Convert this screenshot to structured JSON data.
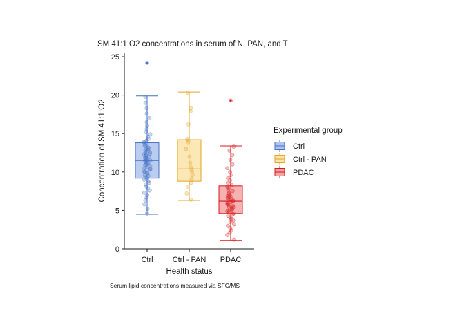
{
  "chart_data": {
    "type": "boxplot",
    "title": "SM 41:1;O2 concentrations in serum of N, PAN, and T",
    "xlabel": "Health status",
    "ylabel": "Concentration of SM 41:1;O2",
    "caption": "Serum lipid concentrations measured via SFC/MS",
    "ylim": [
      0,
      25
    ],
    "yticks": [
      0,
      5,
      10,
      15,
      20,
      25
    ],
    "categories": [
      "Ctrl",
      "Ctrl - PAN",
      "PDAC"
    ],
    "legend": {
      "title": "Experimental group",
      "position": "right",
      "entries": [
        "Ctrl",
        "Ctrl - PAN",
        "PDAC"
      ]
    },
    "grid": false,
    "series": [
      {
        "category": "Ctrl",
        "color": "#4472C4",
        "fill": "#AFC3EE",
        "whisker_low": 4.5,
        "q1": 9.2,
        "median": 11.5,
        "q3": 13.8,
        "whisker_high": 19.9,
        "outliers": [
          24.2
        ],
        "points": [
          4.6,
          5.2,
          5.8,
          6.3,
          6.7,
          7.0,
          7.3,
          7.6,
          7.9,
          8.1,
          8.4,
          8.6,
          8.8,
          9.0,
          9.2,
          9.3,
          9.5,
          9.6,
          9.8,
          9.9,
          10.0,
          10.1,
          10.3,
          10.4,
          10.5,
          10.6,
          10.8,
          10.9,
          11.0,
          11.1,
          11.2,
          11.3,
          11.4,
          11.5,
          11.5,
          11.6,
          11.7,
          11.8,
          11.9,
          12.0,
          12.1,
          12.2,
          12.3,
          12.4,
          12.5,
          12.6,
          12.7,
          12.8,
          12.9,
          13.0,
          13.1,
          13.2,
          13.4,
          13.5,
          13.6,
          13.8,
          13.9,
          14.1,
          14.3,
          14.6,
          14.9,
          15.2,
          15.6,
          16.0,
          16.5,
          17.0,
          17.6,
          18.3,
          19.0,
          19.8
        ]
      },
      {
        "category": "Ctrl - PAN",
        "color": "#E0A526",
        "fill": "#FCE3AA",
        "whisker_low": 6.3,
        "q1": 8.8,
        "median": 10.4,
        "q3": 14.2,
        "whisker_high": 20.4,
        "outliers": [],
        "points": [
          6.4,
          7.2,
          8.0,
          8.6,
          9.1,
          9.6,
          10.0,
          10.3,
          10.6,
          11.2,
          12.0,
          13.0,
          13.8,
          14.1,
          14.3,
          16.2,
          17.9,
          18.3,
          20.3
        ]
      },
      {
        "category": "PDAC",
        "color": "#D7191C",
        "fill": "#F4A3A4",
        "whisker_low": 1.1,
        "q1": 4.6,
        "median": 6.2,
        "q3": 8.2,
        "whisker_high": 13.4,
        "outliers": [
          19.3
        ],
        "points": [
          1.2,
          1.8,
          2.1,
          2.4,
          2.7,
          3.0,
          3.2,
          3.5,
          3.7,
          3.9,
          4.1,
          4.3,
          4.5,
          4.6,
          4.8,
          4.9,
          5.0,
          5.1,
          5.2,
          5.3,
          5.4,
          5.5,
          5.6,
          5.7,
          5.8,
          5.9,
          6.0,
          6.1,
          6.2,
          6.3,
          6.4,
          6.5,
          6.6,
          6.7,
          6.8,
          6.9,
          7.0,
          7.2,
          7.3,
          7.5,
          7.7,
          7.9,
          8.1,
          8.3,
          8.6,
          8.9,
          9.2,
          9.6,
          10.0,
          10.5,
          11.0,
          11.6,
          12.2,
          12.8,
          13.3
        ]
      }
    ]
  }
}
